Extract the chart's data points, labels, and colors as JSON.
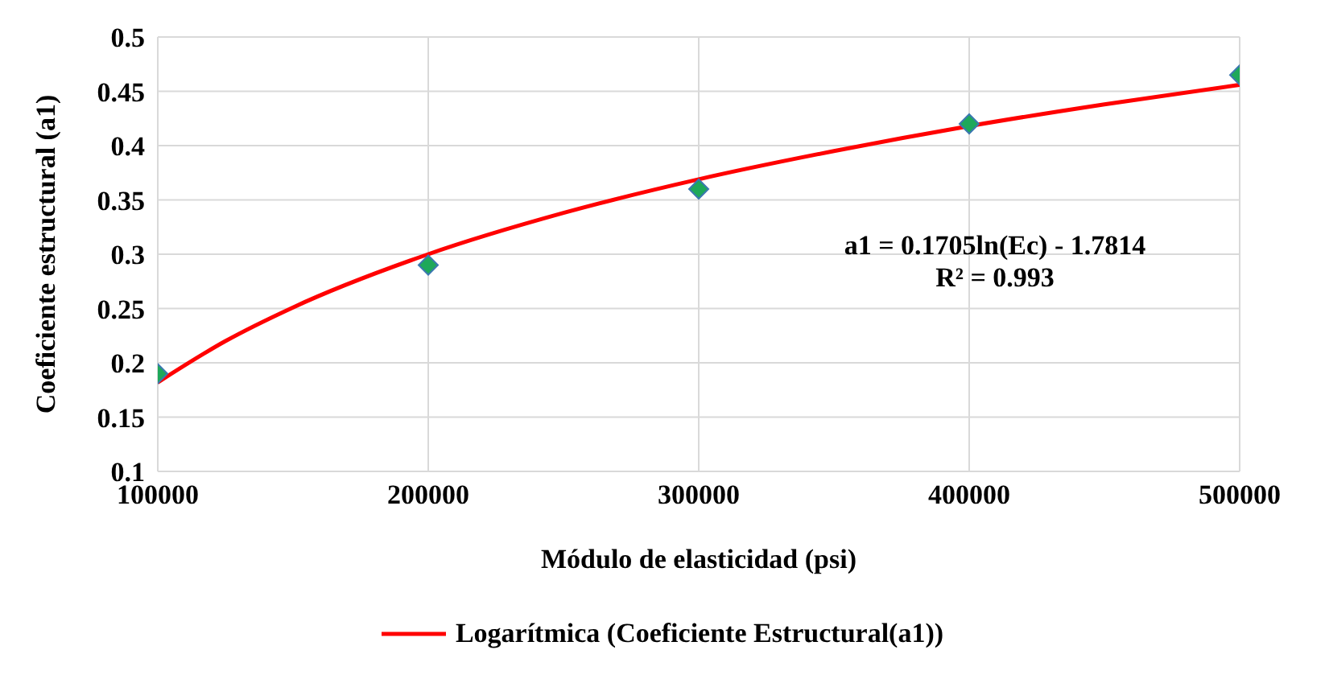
{
  "chart_data": {
    "type": "scatter",
    "xlabel": "Módulo de elasticidad (psi)",
    "ylabel": "Coeficiente estructural (a1)",
    "x": [
      100000,
      200000,
      300000,
      400000,
      500000
    ],
    "series": [
      {
        "color": "#1ea85a",
        "marker": "diamond",
        "values": [
          0.19,
          0.29,
          0.36,
          0.42,
          0.465
        ]
      },
      {
        "type": "line",
        "name": "Logarítmica (Coeficiente Estructural(a1))",
        "color": "#ff0000",
        "x": [
          100000,
          125000,
          150000,
          200000,
          250000,
          300000,
          350000,
          400000,
          450000,
          500000
        ],
        "values": [
          0.182,
          0.22,
          0.251,
          0.3,
          0.338,
          0.369,
          0.395,
          0.418,
          0.438,
          0.456
        ]
      }
    ],
    "annotations": [
      "a1 = 0.1705ln(Ec) - 1.7814\nR² = 0.993"
    ],
    "xlim": [
      100000,
      500000
    ],
    "xticks": [
      100000,
      200000,
      300000,
      400000,
      500000
    ],
    "ylim": [
      0.1,
      0.5
    ],
    "yticks": [
      0.1,
      0.15,
      0.2,
      0.25,
      0.3,
      0.35,
      0.4,
      0.45,
      0.5
    ],
    "grid": true,
    "legend": "bottom"
  }
}
